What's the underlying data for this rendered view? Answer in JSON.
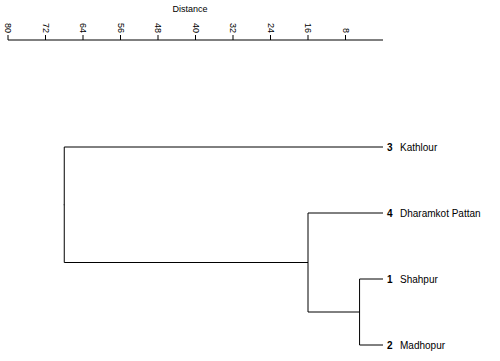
{
  "chart_data": {
    "type": "dendrogram",
    "x_label": "Distance",
    "xlim": [
      80,
      0
    ],
    "xticks": [
      80,
      72,
      64,
      56,
      48,
      40,
      32,
      24,
      16,
      8
    ],
    "tree": {
      "height": 68,
      "children": [
        {
          "number": 3,
          "label": "Kathlour"
        },
        {
          "height": 16,
          "children": [
            {
              "number": 4,
              "label": "Dharamkot Pattan"
            },
            {
              "height": 5,
              "children": [
                {
                  "number": 1,
                  "label": "Shahpur"
                },
                {
                  "number": 2,
                  "label": "Madhopur"
                }
              ]
            }
          ]
        }
      ]
    }
  }
}
